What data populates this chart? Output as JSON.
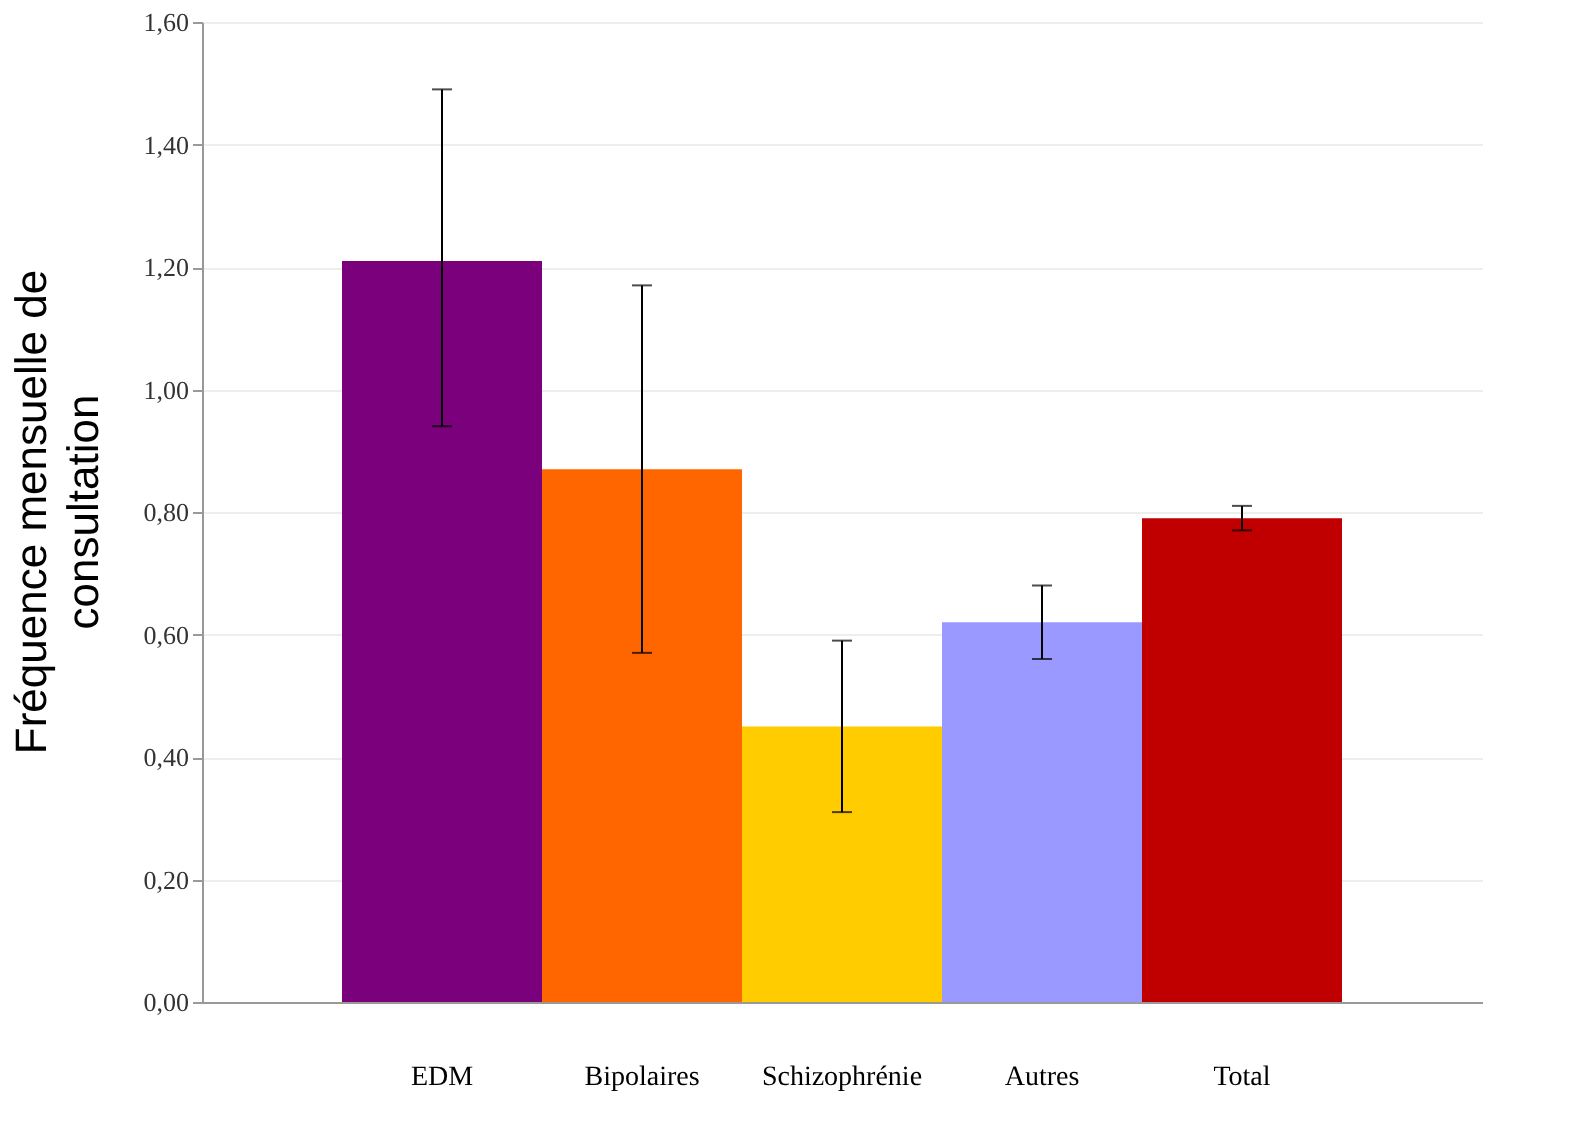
{
  "chart_data": {
    "type": "bar",
    "ylabel": "Fréquence mensuelle de consultation",
    "categories": [
      "EDM",
      "Bipolaires",
      "Schizophrénie",
      "Autres",
      "Total"
    ],
    "values": [
      1.21,
      0.87,
      0.45,
      0.62,
      0.79
    ],
    "colors": [
      "#7b007b",
      "#ff6600",
      "#ffcc00",
      "#9999ff",
      "#c00000"
    ],
    "errors": [
      [
        0.94,
        1.49
      ],
      [
        0.57,
        1.17
      ],
      [
        0.31,
        0.59
      ],
      [
        0.56,
        0.68
      ],
      [
        0.77,
        0.81
      ]
    ],
    "ylim": [
      0,
      1.6
    ],
    "yticks": [
      {
        "value": 0,
        "label": "0,00"
      },
      {
        "value": 0.2,
        "label": "0,20"
      },
      {
        "value": 0.4,
        "label": "0,40"
      },
      {
        "value": 0.6,
        "label": "0,60"
      },
      {
        "value": 0.8,
        "label": "0,80"
      },
      {
        "value": 1.0,
        "label": "1,00"
      },
      {
        "value": 1.2,
        "label": "1,20"
      },
      {
        "value": 1.4,
        "label": "1,40"
      },
      {
        "value": 1.6,
        "label": "1,60"
      }
    ],
    "grid": "y"
  }
}
